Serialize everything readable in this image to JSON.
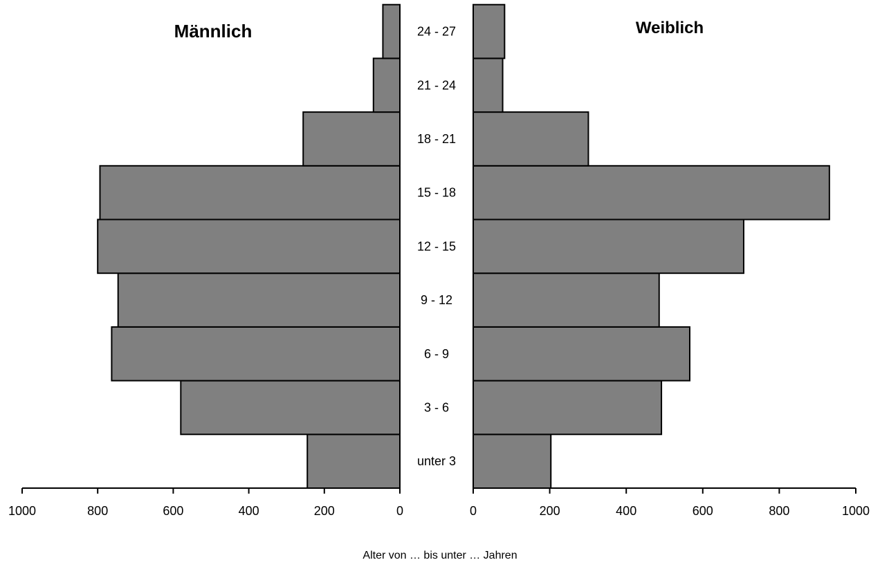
{
  "chart_data": {
    "type": "bar",
    "orientation": "horizontal",
    "layout": "population-pyramid",
    "bar_color": "#808080",
    "categories": [
      "unter 3",
      "3 - 6",
      "6 - 9",
      "9 - 12",
      "12 - 15",
      "15 - 18",
      "18 - 21",
      "21 - 24",
      "24 - 27"
    ],
    "series": [
      {
        "name": "Männlich",
        "side": "left",
        "values": [
          245,
          580,
          763,
          746,
          800,
          794,
          256,
          70,
          45
        ]
      },
      {
        "name": "Weiblich",
        "side": "right",
        "values": [
          203,
          492,
          566,
          486,
          707,
          931,
          301,
          77,
          82
        ]
      }
    ],
    "xlim": [
      0,
      1000
    ],
    "x_ticks_left": [
      "1000",
      "800",
      "600",
      "400",
      "200",
      "0"
    ],
    "x_ticks_right": [
      "0",
      "200",
      "400",
      "600",
      "800",
      "1000"
    ],
    "xlabel": "Alter von … bis unter … Jahren",
    "grid": false
  }
}
